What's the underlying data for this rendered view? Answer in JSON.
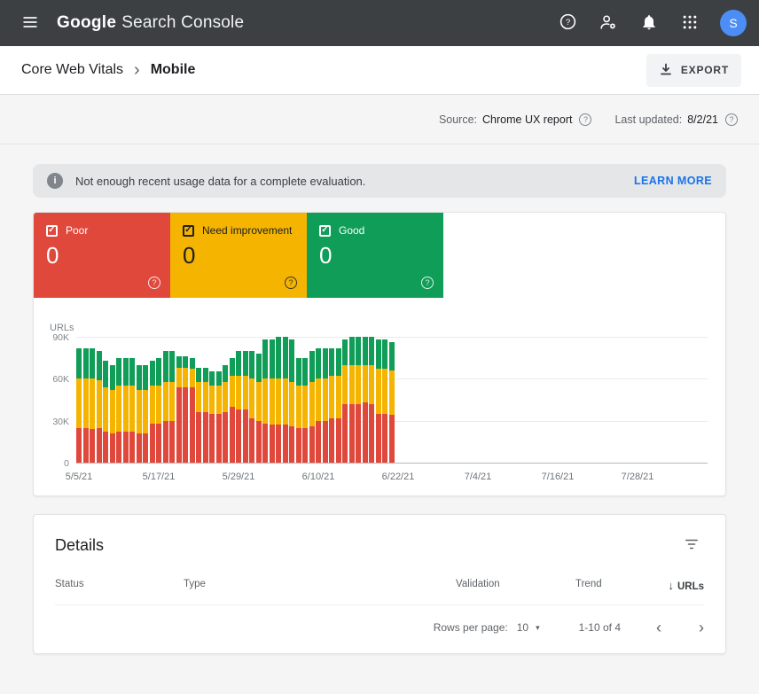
{
  "header": {
    "logo_google": "Google",
    "logo_product": "Search Console",
    "avatar_letter": "S"
  },
  "breadcrumb": {
    "section": "Core Web Vitals",
    "separator": "›",
    "page": "Mobile",
    "export_label": "EXPORT"
  },
  "meta": {
    "source_label": "Source:",
    "source_value": "Chrome UX report",
    "updated_label": "Last updated:",
    "updated_value": "8/2/21"
  },
  "banner": {
    "info_glyph": "i",
    "message": "Not enough recent usage data for a complete evaluation.",
    "action": "LEARN MORE"
  },
  "tiles": [
    {
      "label": "Poor",
      "value": "0",
      "color": "#e0483c",
      "text": "#ffffff",
      "check": "✓",
      "help": "?"
    },
    {
      "label": "Need improvement",
      "value": "0",
      "color": "#f4b400",
      "text": "#202124",
      "check": "✓",
      "help": "?"
    },
    {
      "label": "Good",
      "value": "0",
      "color": "#0f9d58",
      "text": "#ffffff",
      "check": "✓",
      "help": "?"
    }
  ],
  "chart_data": {
    "type": "bar",
    "stacked": true,
    "title": "",
    "xlabel": "",
    "ylabel": "URLs",
    "values_unit": "thousands of URLs (K)",
    "ylim": [
      0,
      90
    ],
    "grid": true,
    "y_ticks": [
      {
        "label": "90K",
        "value": 90
      },
      {
        "label": "60K",
        "value": 60
      },
      {
        "label": "30K",
        "value": 30
      },
      {
        "label": "0",
        "value": 0
      }
    ],
    "x_tick_labels": [
      "5/5/21",
      "5/17/21",
      "5/29/21",
      "6/10/21",
      "6/22/21",
      "7/4/21",
      "7/16/21",
      "7/28/21"
    ],
    "x_tick_day_offsets": [
      0,
      12,
      24,
      36,
      48,
      60,
      72,
      84
    ],
    "data_range_note": "daily stacked bars from 5/5/21 through 6/21/21; no bars after 6/22/21",
    "series": [
      {
        "name": "Poor",
        "color": "#e0483c",
        "values": [
          25,
          25,
          24,
          25,
          22,
          21,
          22,
          22,
          22,
          21,
          21,
          28,
          28,
          30,
          30,
          54,
          54,
          54,
          36,
          36,
          35,
          35,
          36,
          40,
          38,
          38,
          32,
          30,
          28,
          27,
          27,
          27,
          26,
          25,
          25,
          26,
          30,
          30,
          32,
          32,
          42,
          42,
          42,
          43,
          42,
          35,
          35,
          34
        ]
      },
      {
        "name": "Need improvement",
        "color": "#f4b400",
        "values": [
          35,
          35,
          36,
          34,
          32,
          31,
          33,
          33,
          33,
          31,
          31,
          27,
          27,
          28,
          28,
          14,
          14,
          13,
          22,
          22,
          20,
          20,
          22,
          22,
          24,
          24,
          28,
          28,
          32,
          33,
          33,
          33,
          32,
          30,
          30,
          32,
          30,
          30,
          30,
          30,
          28,
          28,
          28,
          27,
          28,
          32,
          32,
          32
        ]
      },
      {
        "name": "Good",
        "color": "#0f9d58",
        "values": [
          22,
          22,
          22,
          21,
          19,
          18,
          20,
          20,
          20,
          18,
          18,
          18,
          20,
          22,
          22,
          8,
          8,
          8,
          10,
          10,
          10,
          10,
          12,
          13,
          18,
          18,
          20,
          20,
          28,
          28,
          30,
          30,
          30,
          20,
          20,
          22,
          22,
          22,
          20,
          20,
          18,
          20,
          20,
          20,
          20,
          21,
          21,
          20
        ]
      }
    ]
  },
  "details": {
    "title": "Details",
    "columns": [
      "Status",
      "Type",
      "Validation",
      "Trend",
      "URLs"
    ],
    "sort_arrow": "↓",
    "pagination": {
      "rows_per_page_label": "Rows per page:",
      "rows_per_page_value": "10",
      "caret": "▾",
      "range_text": "1-10 of 4",
      "prev": "‹",
      "next": "›"
    }
  }
}
